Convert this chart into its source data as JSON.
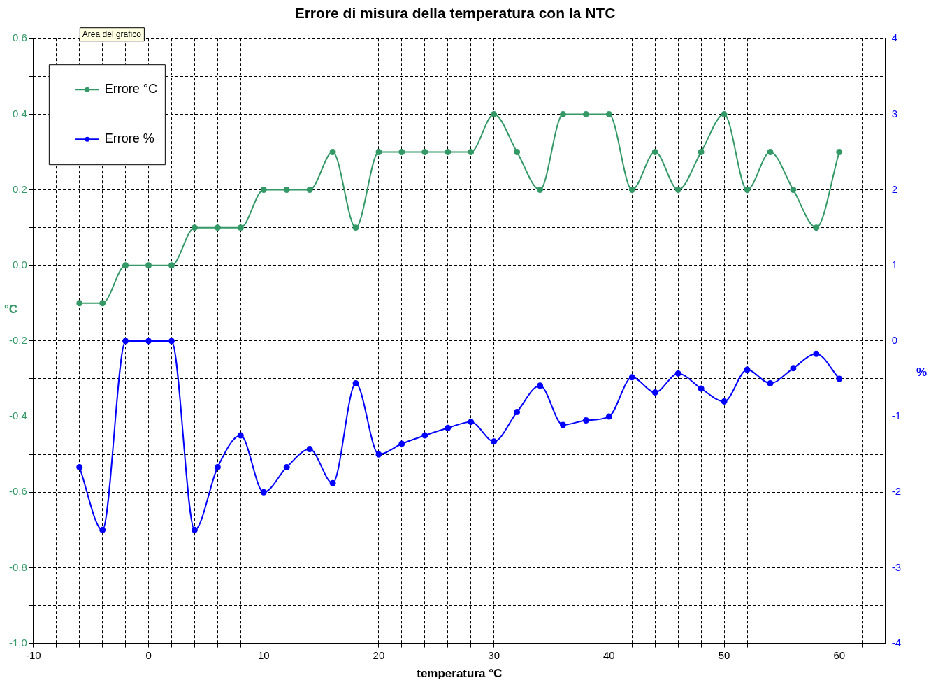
{
  "chart_data": {
    "type": "line",
    "title": "Errore di misura della temperatura con la NTC",
    "xlabel": "temperatura °C",
    "ylabel": "°C",
    "y2label": "%",
    "annotations": [
      "Area del grafico"
    ],
    "x": [
      -6,
      -4,
      -2,
      0,
      2,
      4,
      6,
      8,
      10,
      12,
      14,
      16,
      18,
      20,
      22,
      24,
      26,
      28,
      30,
      32,
      34,
      36,
      38,
      40,
      42,
      44,
      46,
      48,
      50,
      52,
      54,
      56,
      58,
      60
    ],
    "series": [
      {
        "name": "Errore °C",
        "color": "#339966",
        "values": [
          -0.1,
          -0.1,
          0,
          0,
          0,
          0.1,
          0.1,
          0.1,
          0.2,
          0.2,
          0.2,
          0.3,
          0.1,
          0.3,
          0.3,
          0.3,
          0.3,
          0.3,
          0.4,
          0.3,
          0.2,
          0.4,
          0.4,
          0.4,
          0.2,
          0.3,
          0.2,
          0.3,
          0.4,
          0.2,
          0.3,
          0.2,
          0.1,
          0.3
        ]
      },
      {
        "name": "Errore %",
        "color": "#0000ff",
        "axis": "y2",
        "values": [
          -1.67,
          -2.5,
          0,
          0,
          0,
          -2.5,
          -1.67,
          -1.25,
          -2,
          -1.67,
          -1.43,
          -1.88,
          -0.56,
          -1.5,
          -1.36,
          -1.25,
          -1.15,
          -1.07,
          -1.33,
          -0.94,
          -0.59,
          -1.11,
          -1.05,
          -1,
          -0.48,
          -0.68,
          -0.43,
          -0.63,
          -0.8,
          -0.38,
          -0.56,
          -0.36,
          -0.17,
          -0.5
        ]
      }
    ],
    "xlim": [
      -10,
      64
    ],
    "xticks": [
      -10,
      {
        "value": -8,
        "label": null
      },
      {
        "value": -6,
        "label": null
      },
      {
        "value": -4,
        "label": null
      },
      {
        "value": -2,
        "label": null
      },
      0,
      {
        "value": 2,
        "label": null
      },
      {
        "value": 4,
        "label": null
      },
      {
        "value": 6,
        "label": null
      },
      {
        "value": 8,
        "label": null
      },
      10,
      {
        "value": 12,
        "label": null
      },
      {
        "value": 14,
        "label": null
      },
      {
        "value": 16,
        "label": null
      },
      {
        "value": 18,
        "label": null
      },
      20,
      {
        "value": 22,
        "label": null
      },
      {
        "value": 24,
        "label": null
      },
      {
        "value": 26,
        "label": null
      },
      {
        "value": 28,
        "label": null
      },
      30,
      {
        "value": 32,
        "label": null
      },
      {
        "value": 34,
        "label": null
      },
      {
        "value": 36,
        "label": null
      },
      {
        "value": 38,
        "label": null
      },
      40,
      {
        "value": 42,
        "label": null
      },
      {
        "value": 44,
        "label": null
      },
      {
        "value": 46,
        "label": null
      },
      {
        "value": 48,
        "label": null
      },
      50,
      {
        "value": 52,
        "label": null
      },
      {
        "value": 54,
        "label": null
      },
      {
        "value": 56,
        "label": null
      },
      {
        "value": 58,
        "label": null
      },
      60,
      {
        "value": 62,
        "label": null
      }
    ],
    "ylim": [
      -1.0,
      0.6
    ],
    "yticks": [
      {
        "value": -1.0,
        "label": "-1,0"
      },
      {
        "value": -0.9,
        "label": null
      },
      {
        "value": -0.8,
        "label": "-0,8"
      },
      {
        "value": -0.7,
        "label": null
      },
      {
        "value": -0.6,
        "label": "-0,6"
      },
      {
        "value": -0.5,
        "label": null
      },
      {
        "value": -0.4,
        "label": "-0,4"
      },
      {
        "value": -0.3,
        "label": null
      },
      {
        "value": -0.2,
        "label": "-0,2"
      },
      {
        "value": -0.1,
        "label": null
      },
      {
        "value": 0,
        "label": "0,0"
      },
      {
        "value": 0.1,
        "label": null
      },
      {
        "value": 0.2,
        "label": "0,2"
      },
      {
        "value": 0.3,
        "label": null
      },
      {
        "value": 0.4,
        "label": "0,4"
      },
      {
        "value": 0.5,
        "label": null
      },
      {
        "value": 0.6,
        "label": "0,6"
      }
    ],
    "y2lim": [
      -4,
      4
    ],
    "y2ticks": [
      -4,
      -3,
      -2,
      -1,
      0,
      1,
      2,
      3,
      4
    ],
    "grid": true,
    "legend": "top left",
    "marker": "circle",
    "line_style": "solid"
  }
}
